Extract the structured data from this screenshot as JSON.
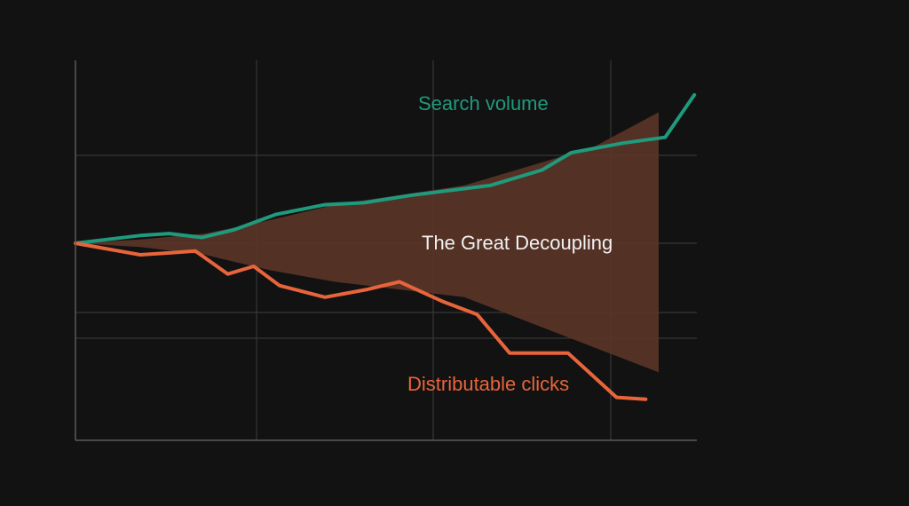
{
  "colors": {
    "background": "#121212",
    "grid": "#3d3d3d",
    "axis": "#5a5a5a",
    "search_volume": "#1f9a7c",
    "distributable_clicks": "#e8653b",
    "gap_fill": "#5a3427",
    "annotation_text": "#f2f2f2"
  },
  "chart_data": {
    "type": "line",
    "title": "",
    "xlabel": "",
    "ylabel": "",
    "x": [
      0,
      1,
      2,
      3,
      4,
      5,
      6,
      7,
      8,
      9,
      10,
      11,
      12,
      13,
      14,
      15,
      16,
      17
    ],
    "xlim": [
      0,
      18
    ],
    "ylim": [
      -50,
      50
    ],
    "grid": true,
    "series": [
      {
        "name": "Search volume",
        "color": "#1f9a7c",
        "values": [
          0,
          2,
          2.5,
          1.5,
          3.5,
          7.5,
          10,
          10.5,
          12.5,
          15,
          19,
          23.5,
          26,
          27.5,
          38.5
        ],
        "x": [
          0,
          2,
          2.9,
          3.9,
          4.9,
          6.2,
          7.7,
          8.9,
          10.4,
          12.8,
          14.4,
          15.3,
          16.9,
          18.2,
          19.1
        ]
      },
      {
        "name": "Distributable clicks",
        "color": "#e8653b",
        "values": [
          0,
          -3,
          -2.5,
          -2,
          -8,
          -6,
          -11,
          -14,
          -12,
          -10,
          -15,
          -18.5,
          -28.5,
          -28.5,
          -40,
          -40.5
        ],
        "x": [
          0,
          2,
          2.9,
          3.7,
          4.7,
          5.5,
          6.3,
          7.7,
          9.0,
          10.0,
          11.3,
          12.4,
          13.4,
          15.2,
          16.7,
          17.6
        ]
      }
    ],
    "annotations": [
      {
        "text": "Search volume",
        "color": "#1f9a7c"
      },
      {
        "text": "The Great Decoupling",
        "color": "#f2f2f2"
      },
      {
        "text": "Distributable clicks",
        "color": "#e8653b"
      }
    ]
  }
}
